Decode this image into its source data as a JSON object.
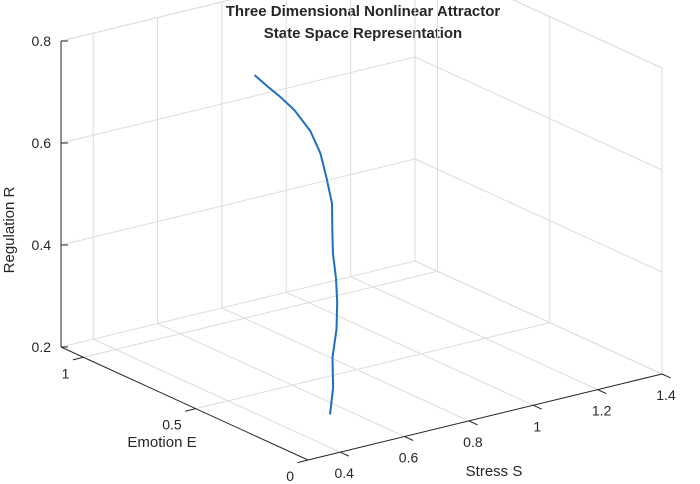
{
  "chart_data": {
    "type": "line3d",
    "title": [
      "Three Dimensional Nonlinear Attractor",
      "State Space Representation"
    ],
    "xlabel": "Stress S",
    "ylabel": "Emotion E",
    "zlabel": "Regulation R",
    "xlim": [
      0.3,
      1.4
    ],
    "ylim": [
      0,
      1.1
    ],
    "zlim": [
      0.2,
      0.8
    ],
    "xticks": [
      0.4,
      0.6,
      0.8,
      1,
      1.2,
      1.4
    ],
    "yticks": [
      0,
      0.5,
      1
    ],
    "zticks": [
      0.2,
      0.4,
      0.6,
      0.8
    ],
    "x_tick_labels": [
      "0.4",
      "0.6",
      "0.8",
      "1",
      "1.2",
      "1.4"
    ],
    "y_tick_labels": [
      "0",
      "0.5",
      "1"
    ],
    "z_tick_labels": [
      "0.2",
      "0.4",
      "0.6",
      "0.8"
    ],
    "grid": true,
    "series": [
      {
        "color": "#1f6fbf",
        "points": [
          {
            "x": 0.55,
            "y": 0.26,
            "z": 0.2
          },
          {
            "x": 0.65,
            "y": 0.39,
            "z": 0.21
          },
          {
            "x": 0.76,
            "y": 0.55,
            "z": 0.22
          },
          {
            "x": 0.87,
            "y": 0.69,
            "z": 0.23
          },
          {
            "x": 0.97,
            "y": 0.83,
            "z": 0.24
          },
          {
            "x": 1.05,
            "y": 0.95,
            "z": 0.25
          },
          {
            "x": 1.11,
            "y": 1.05,
            "z": 0.27
          },
          {
            "x": 1.15,
            "y": 1.11,
            "z": 0.3
          },
          {
            "x": 1.17,
            "y": 1.14,
            "z": 0.34
          },
          {
            "x": 1.16,
            "y": 1.15,
            "z": 0.39
          },
          {
            "x": 1.12,
            "y": 1.12,
            "z": 0.45
          },
          {
            "x": 1.04,
            "y": 1.05,
            "z": 0.52
          },
          {
            "x": 0.92,
            "y": 0.95,
            "z": 0.6
          },
          {
            "x": 0.77,
            "y": 0.8,
            "z": 0.68
          },
          {
            "x": 0.61,
            "y": 0.63,
            "z": 0.76
          },
          {
            "x": 0.45,
            "y": 0.45,
            "z": 0.84
          }
        ]
      }
    ]
  }
}
